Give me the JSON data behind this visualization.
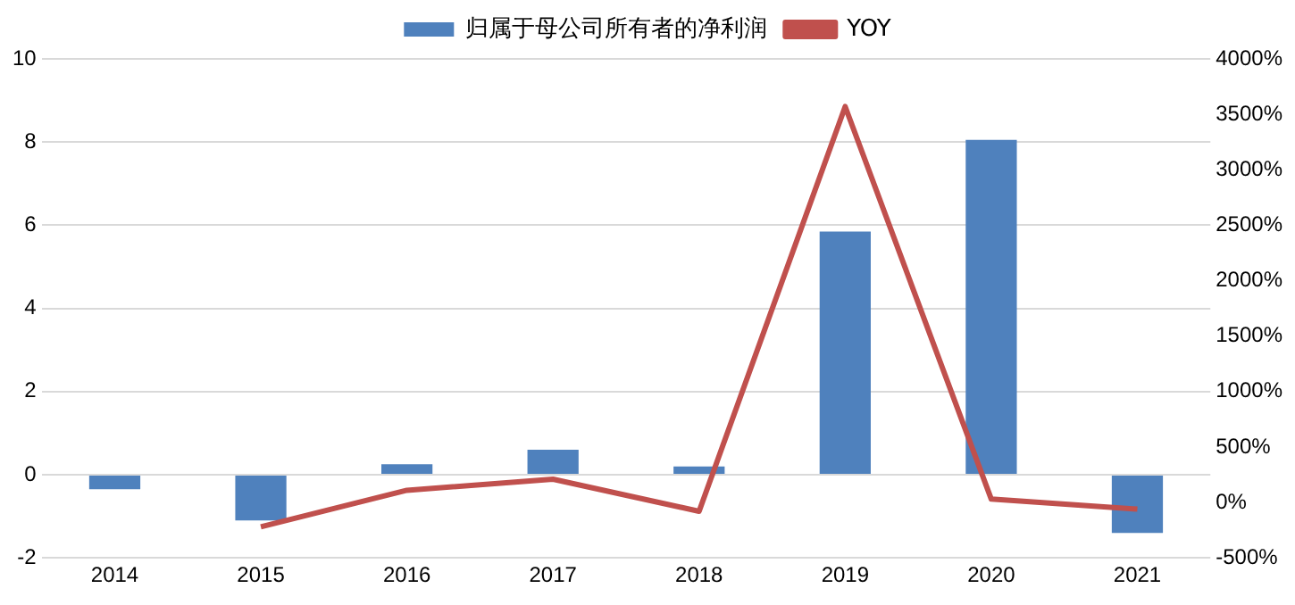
{
  "chart_data": {
    "type": "bar",
    "categories": [
      "2014",
      "2015",
      "2016",
      "2017",
      "2018",
      "2019",
      "2020",
      "2021"
    ],
    "series": [
      {
        "name": "归属于母公司所有者的净利润",
        "color": "#4f81bd",
        "values": [
          -0.35,
          -1.1,
          0.25,
          0.6,
          0.2,
          5.85,
          8.05,
          -1.4
        ]
      },
      {
        "name": "YOY",
        "type": "line",
        "axis": "y2",
        "color": "#c0504d",
        "values": [
          null,
          -220,
          110,
          210,
          -80,
          3570,
          30,
          -60
        ]
      }
    ],
    "ylim": [
      -2,
      10
    ],
    "yticks": [
      -2,
      0,
      2,
      4,
      6,
      8,
      10
    ],
    "y2lim": [
      -500,
      4000
    ],
    "y2ticks": [
      {
        "value": -500,
        "label": "-500%"
      },
      {
        "value": 0,
        "label": "0%"
      },
      {
        "value": 500,
        "label": "500%"
      },
      {
        "value": 1000,
        "label": "1000%"
      },
      {
        "value": 1500,
        "label": "1500%"
      },
      {
        "value": 2000,
        "label": "2000%"
      },
      {
        "value": 2500,
        "label": "2500%"
      },
      {
        "value": 3000,
        "label": "3000%"
      },
      {
        "value": 3500,
        "label": "3500%"
      },
      {
        "value": 4000,
        "label": "4000%"
      }
    ],
    "grid": "y",
    "legend": "top",
    "marker": "none",
    "line_style": "solid"
  }
}
